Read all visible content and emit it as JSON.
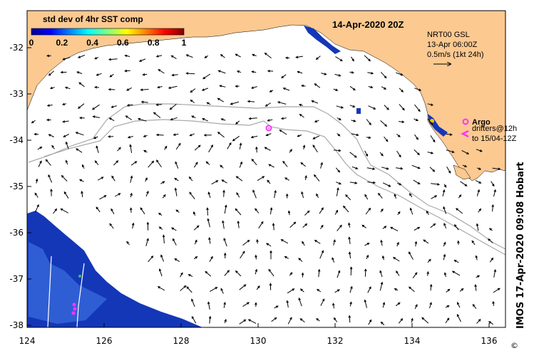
{
  "map": {
    "date_title": "14-Apr-2020 20Z",
    "colorbar": {
      "title": "std dev of 4hr SST comp",
      "ticks": [
        "0",
        "0.2",
        "0.4",
        "0.6",
        "0.8",
        "1"
      ],
      "colors": [
        "#00008f",
        "#0000ff",
        "#0080ff",
        "#00ffff",
        "#80ff80",
        "#ffff00",
        "#ff8000",
        "#ff0000",
        "#800000"
      ]
    },
    "legend": {
      "lines": [
        "NRT00 GSL",
        "13-Apr 06:00Z",
        "0.5m/s (1kt 24h)"
      ]
    },
    "argo": {
      "label": "Argo",
      "drifters_line1": "drifters@12h",
      "drifters_line2": "to 15/04-12Z"
    },
    "credit": "IMOS 17-Apr-2020 09:08 Hobart",
    "x_ticks": [
      "124",
      "126",
      "128",
      "130",
      "132",
      "134",
      "136"
    ],
    "y_ticks": [
      "-32",
      "-33",
      "-34",
      "-35",
      "-36",
      "-37",
      "-38"
    ],
    "colors": {
      "land": "#fcc991",
      "ocean": "#ffffff",
      "bathymetry": "#a8a8a8",
      "argo": "#ff33ff"
    }
  }
}
